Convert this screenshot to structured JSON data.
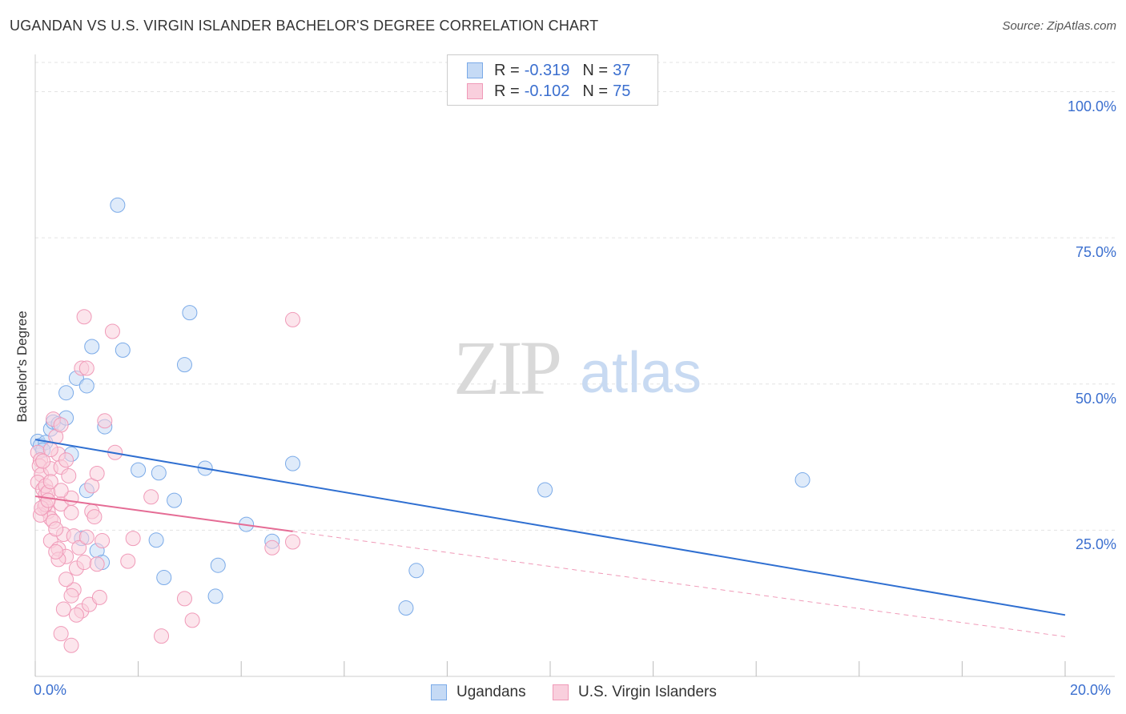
{
  "title": "UGANDAN VS U.S. VIRGIN ISLANDER BACHELOR'S DEGREE CORRELATION CHART",
  "source": "Source: ZipAtlas.com",
  "watermark": {
    "zip": "ZIP",
    "atlas": "atlas"
  },
  "legend": {
    "r_label": "R =",
    "n_label": "N =",
    "items": [
      {
        "r": "-0.319",
        "n": "37"
      },
      {
        "r": "-0.102",
        "n": "75"
      }
    ]
  },
  "chart_data": {
    "type": "scatter",
    "title": "UGANDAN VS U.S. VIRGIN ISLANDER BACHELOR'S DEGREE CORRELATION CHART",
    "xlabel": "",
    "ylabel": "Bachelor's Degree",
    "xlim": [
      0,
      20
    ],
    "ylim": [
      0,
      105
    ],
    "x_tick_labels": [
      "0.0%",
      "20.0%"
    ],
    "y_ticks": [
      25,
      50,
      75,
      100
    ],
    "y_tick_labels": [
      "25.0%",
      "50.0%",
      "75.0%",
      "100.0%"
    ],
    "grid": true,
    "legend_position": "bottom",
    "series": [
      {
        "name": "Ugandans",
        "color": "#7aaae8",
        "fill": "#c5daf5",
        "trend": {
          "x0": 0,
          "y0": 40.5,
          "x1": 20,
          "y1": 10.5,
          "style": "solid",
          "line_color": "#2f6fd1"
        },
        "points": [
          [
            0.05,
            40.2
          ],
          [
            0.1,
            39.5
          ],
          [
            0.2,
            40.0
          ],
          [
            0.3,
            42.3
          ],
          [
            0.35,
            43.5
          ],
          [
            0.45,
            43.2
          ],
          [
            0.6,
            44.2
          ],
          [
            0.7,
            38.0
          ],
          [
            0.8,
            51.0
          ],
          [
            0.6,
            48.5
          ],
          [
            1.0,
            49.7
          ],
          [
            1.1,
            56.4
          ],
          [
            1.0,
            31.8
          ],
          [
            0.9,
            23.6
          ],
          [
            1.2,
            21.5
          ],
          [
            1.3,
            19.5
          ],
          [
            1.35,
            42.7
          ],
          [
            1.6,
            80.6
          ],
          [
            1.7,
            55.8
          ],
          [
            2.0,
            35.3
          ],
          [
            2.4,
            34.8
          ],
          [
            2.35,
            23.3
          ],
          [
            2.5,
            16.9
          ],
          [
            2.7,
            30.1
          ],
          [
            2.9,
            53.3
          ],
          [
            3.0,
            62.2
          ],
          [
            3.3,
            35.6
          ],
          [
            3.5,
            13.7
          ],
          [
            3.55,
            19.0
          ],
          [
            4.1,
            26.0
          ],
          [
            4.6,
            23.1
          ],
          [
            5.0,
            36.4
          ],
          [
            7.4,
            18.1
          ],
          [
            7.2,
            11.7
          ],
          [
            9.9,
            31.9
          ],
          [
            14.9,
            33.6
          ],
          [
            0.15,
            38.7
          ]
        ]
      },
      {
        "name": "U.S. Virgin Islanders",
        "color": "#f09ab8",
        "fill": "#f9cfdd",
        "trend": {
          "x0": 0,
          "y0": 30.8,
          "x1": 5.0,
          "y1": 24.8,
          "style": "solid",
          "line_color": "#e56c95"
        },
        "trend_ext": {
          "x0": 5.0,
          "y0": 24.8,
          "x1": 20,
          "y1": 6.8,
          "style": "dashed"
        },
        "points": [
          [
            0.05,
            38.3
          ],
          [
            0.1,
            37.0
          ],
          [
            0.08,
            36.0
          ],
          [
            0.12,
            34.5
          ],
          [
            0.05,
            33.2
          ],
          [
            0.15,
            32.0
          ],
          [
            0.2,
            31.0
          ],
          [
            0.18,
            29.0
          ],
          [
            0.25,
            28.2
          ],
          [
            0.3,
            35.5
          ],
          [
            0.3,
            27.0
          ],
          [
            0.35,
            26.5
          ],
          [
            0.3,
            23.2
          ],
          [
            0.4,
            41.0
          ],
          [
            0.35,
            44.0
          ],
          [
            0.45,
            38.0
          ],
          [
            0.5,
            43.0
          ],
          [
            0.5,
            35.8
          ],
          [
            0.5,
            29.5
          ],
          [
            0.45,
            21.8
          ],
          [
            0.55,
            24.3
          ],
          [
            0.6,
            20.5
          ],
          [
            0.55,
            11.5
          ],
          [
            0.5,
            7.3
          ],
          [
            0.6,
            37.0
          ],
          [
            0.65,
            34.3
          ],
          [
            0.7,
            30.5
          ],
          [
            0.7,
            28.0
          ],
          [
            0.75,
            24.0
          ],
          [
            0.8,
            18.5
          ],
          [
            0.75,
            14.8
          ],
          [
            0.7,
            5.3
          ],
          [
            0.85,
            22.0
          ],
          [
            0.9,
            11.2
          ],
          [
            0.95,
            19.5
          ],
          [
            0.9,
            52.7
          ],
          [
            0.95,
            61.5
          ],
          [
            1.0,
            52.7
          ],
          [
            1.0,
            23.8
          ],
          [
            1.05,
            12.3
          ],
          [
            1.1,
            28.2
          ],
          [
            1.1,
            32.6
          ],
          [
            1.15,
            27.3
          ],
          [
            1.2,
            34.7
          ],
          [
            1.2,
            19.2
          ],
          [
            1.25,
            13.5
          ],
          [
            1.3,
            23.2
          ],
          [
            1.35,
            43.7
          ],
          [
            1.5,
            59.0
          ],
          [
            1.55,
            38.3
          ],
          [
            1.8,
            19.7
          ],
          [
            1.9,
            23.6
          ],
          [
            2.25,
            30.7
          ],
          [
            2.45,
            6.9
          ],
          [
            2.9,
            13.3
          ],
          [
            3.05,
            9.6
          ],
          [
            4.6,
            22.0
          ],
          [
            5.0,
            61.0
          ],
          [
            5.0,
            23.0
          ],
          [
            0.1,
            27.6
          ],
          [
            0.2,
            32.6
          ],
          [
            0.25,
            31.5
          ],
          [
            0.15,
            36.8
          ],
          [
            0.3,
            33.3
          ],
          [
            0.4,
            25.2
          ],
          [
            0.45,
            20.0
          ],
          [
            0.6,
            16.6
          ],
          [
            0.7,
            13.8
          ],
          [
            0.3,
            38.8
          ],
          [
            0.5,
            31.8
          ],
          [
            0.8,
            10.5
          ],
          [
            0.2,
            29.4
          ],
          [
            0.12,
            28.8
          ],
          [
            0.4,
            21.3
          ],
          [
            0.25,
            30.1
          ]
        ]
      }
    ]
  },
  "bottom_legend": [
    "Ugandans",
    "U.S. Virgin Islanders"
  ]
}
